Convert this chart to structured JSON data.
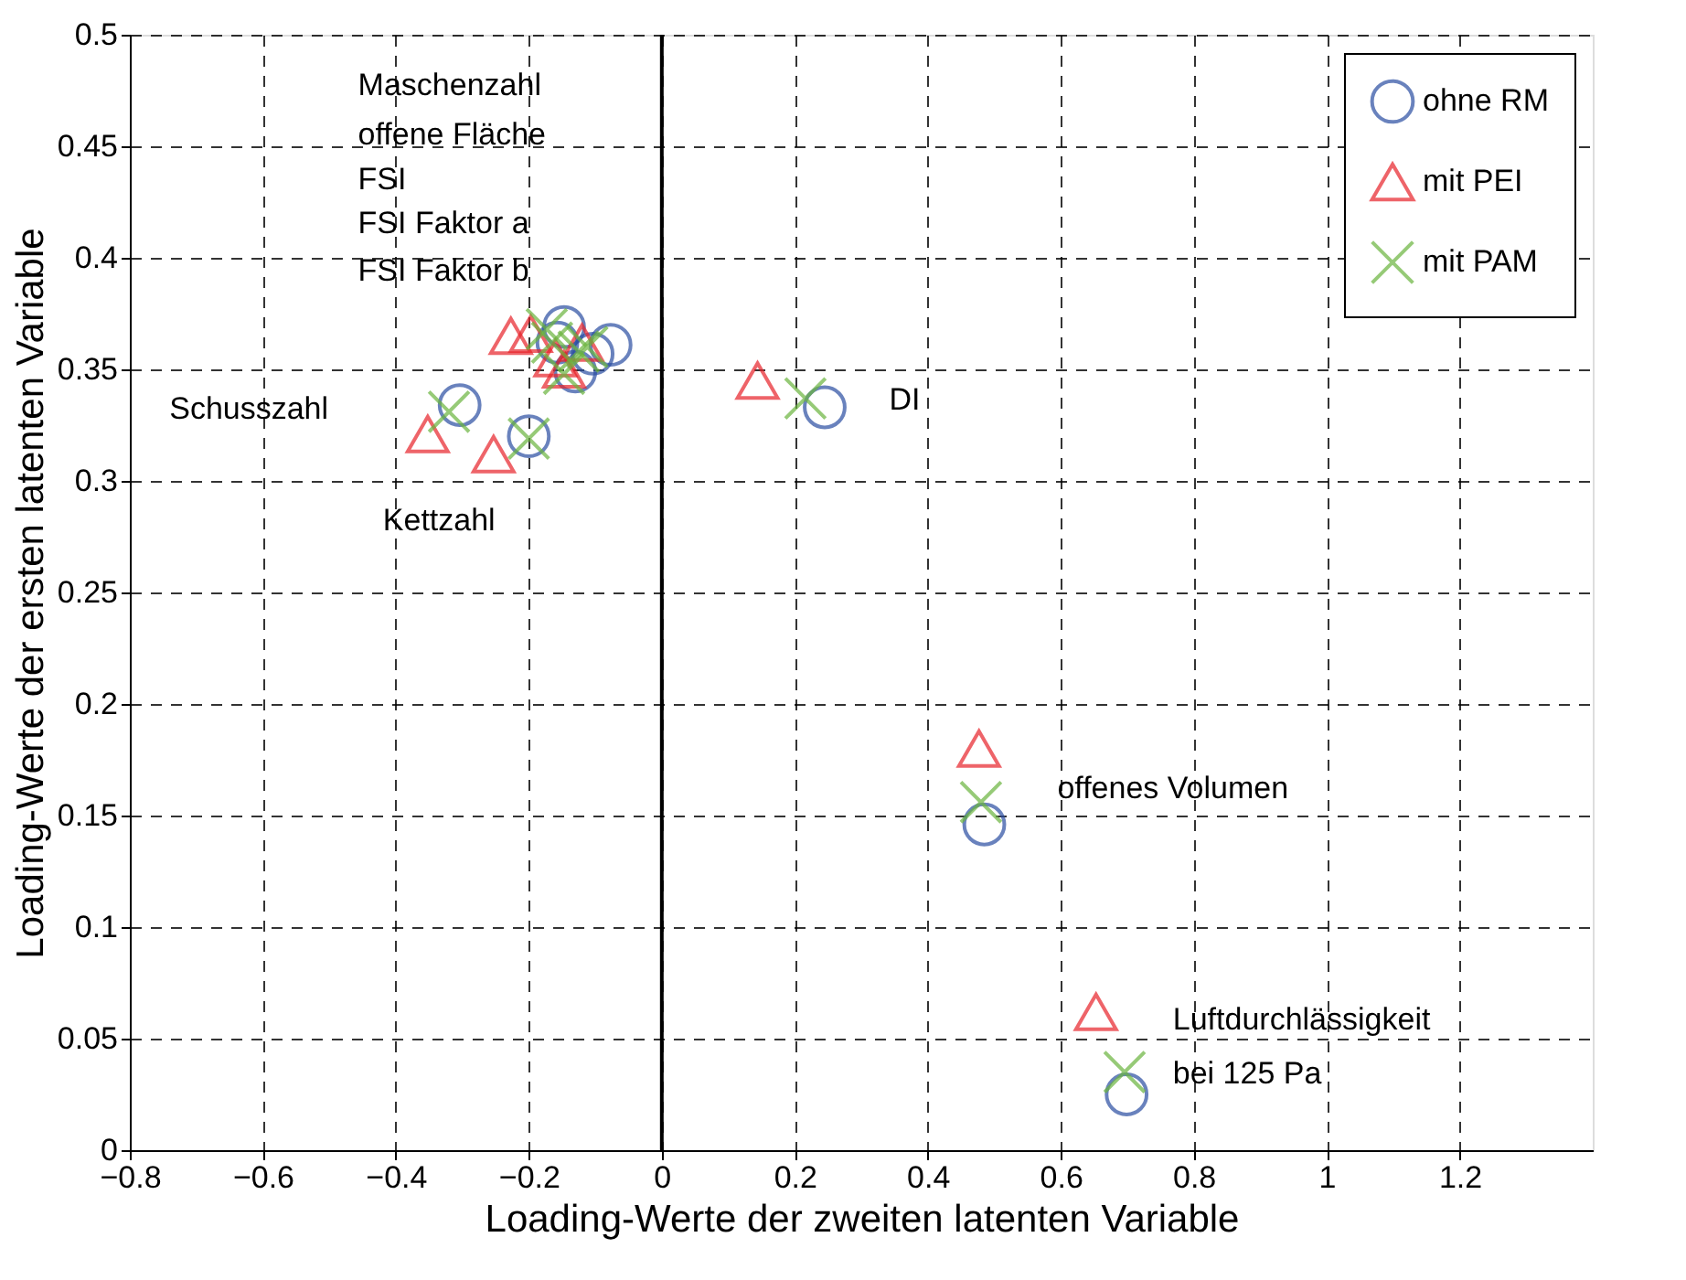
{
  "chart_data": {
    "type": "scatter",
    "xlabel": "Loading-Werte der zweiten latenten Variable",
    "ylabel": "Loading-Werte der ersten latenten Variable",
    "xlim": [
      -0.8,
      1.4
    ],
    "xticks": [
      -0.8,
      -0.6,
      -0.4,
      -0.2,
      0,
      0.2,
      0.4,
      0.6,
      0.8,
      1,
      1.2
    ],
    "ylim": [
      0,
      0.5
    ],
    "yticks": [
      0,
      0.05,
      0.1,
      0.15,
      0.2,
      0.25,
      0.3,
      0.35,
      0.4,
      0.45,
      0.5
    ],
    "grid": true,
    "legend": "top right",
    "series": [
      {
        "name": "ohne RM",
        "color": "#2b4ea2",
        "marker": "circle",
        "x": [
          -0.147,
          -0.077,
          -0.13,
          -0.104,
          -0.157,
          -0.304,
          -0.2,
          0.245,
          0.485,
          0.699
        ],
        "values": [
          0.369,
          0.361,
          0.349,
          0.357,
          0.362,
          0.334,
          0.32,
          0.333,
          0.146,
          0.025
        ]
      },
      {
        "name": "mit PEI",
        "color": "#e8232a",
        "marker": "triangle",
        "x": [
          -0.227,
          -0.197,
          -0.16,
          -0.147,
          -0.12,
          -0.352,
          -0.253,
          0.144,
          0.477,
          0.653
        ],
        "values": [
          0.365,
          0.366,
          0.355,
          0.35,
          0.362,
          0.321,
          0.312,
          0.345,
          0.18,
          0.062
        ]
      },
      {
        "name": "mit PAM",
        "color": "#6ab43e",
        "marker": "cross",
        "x": [
          -0.173,
          -0.147,
          -0.112,
          -0.125,
          -0.165,
          -0.32,
          -0.2,
          0.216,
          0.48,
          0.696
        ],
        "values": [
          0.368,
          0.348,
          0.36,
          0.358,
          0.362,
          0.331,
          0.319,
          0.337,
          0.156,
          0.035
        ]
      }
    ],
    "ref_lines": [
      {
        "axis": "x",
        "value": 0,
        "color": "#000000"
      }
    ],
    "annotations": [
      "Maschenzahl",
      "offene Fläche",
      "FSI",
      "FSI Faktor a",
      "FSI Faktor b",
      "Schusszahl",
      "Kettzahl",
      "DI",
      "offenes Volumen",
      "Luftdurchlässigkeit",
      "bei 125 Pa"
    ]
  }
}
